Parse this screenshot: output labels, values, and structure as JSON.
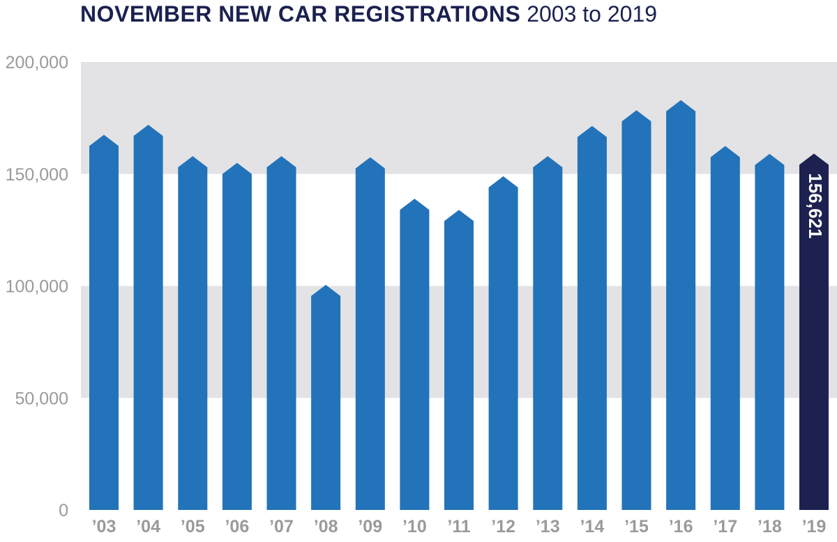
{
  "title": {
    "main": "NOVEMBER NEW CAR REGISTRATIONS",
    "range": "2003 to 2019"
  },
  "colors": {
    "bar": "#2273b9",
    "highlight_bar": "#1c2150",
    "band": "#e3e2e5",
    "tick": "#9a9a9a",
    "title": "#1b2150"
  },
  "chart_data": {
    "type": "bar",
    "title": "NOVEMBER NEW CAR REGISTRATIONS 2003 to 2019",
    "xlabel": "",
    "ylabel": "",
    "ylim": [
      0,
      200000
    ],
    "yticks": [
      0,
      50000,
      100000,
      150000,
      200000
    ],
    "ytick_labels": [
      "0",
      "50,000",
      "100,000",
      "150,000",
      "200,000"
    ],
    "grid": "alternating bands",
    "categories": [
      "’03",
      "’04",
      "’05",
      "’06",
      "’07",
      "’08",
      "’09",
      "’10",
      "’11",
      "’12",
      "’13",
      "’14",
      "’15",
      "’16",
      "’17",
      "’18",
      "’19"
    ],
    "values": [
      165000,
      169500,
      155500,
      152500,
      155500,
      98000,
      155000,
      136500,
      131500,
      146500,
      155500,
      169000,
      176000,
      180500,
      160000,
      156500,
      156621
    ],
    "highlight_index": 16,
    "data_labels": [
      {
        "index": 16,
        "text": "156,621"
      }
    ]
  }
}
